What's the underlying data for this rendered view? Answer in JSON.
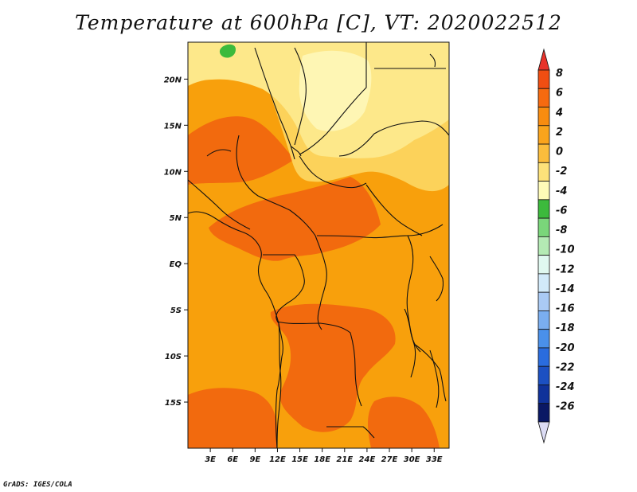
{
  "title": "Temperature at 600hPa [C], VT: 2020022512",
  "credit": "GrADS: IGES/COLA",
  "map": {
    "lon_range": [
      0,
      35
    ],
    "lat_range": [
      -20,
      24
    ],
    "lat_labels": [
      {
        "lat": 20,
        "text": "20N"
      },
      {
        "lat": 15,
        "text": "15N"
      },
      {
        "lat": 10,
        "text": "10N"
      },
      {
        "lat": 5,
        "text": "5N"
      },
      {
        "lat": 0,
        "text": "EQ"
      },
      {
        "lat": -5,
        "text": "5S"
      },
      {
        "lat": -10,
        "text": "10S"
      },
      {
        "lat": -15,
        "text": "15S"
      }
    ],
    "lon_labels": [
      {
        "lon": 3,
        "text": "3E"
      },
      {
        "lon": 6,
        "text": "6E"
      },
      {
        "lon": 9,
        "text": "9E"
      },
      {
        "lon": 12,
        "text": "12E"
      },
      {
        "lon": 15,
        "text": "15E"
      },
      {
        "lon": 18,
        "text": "18E"
      },
      {
        "lon": 21,
        "text": "21E"
      },
      {
        "lon": 24,
        "text": "24E"
      },
      {
        "lon": 27,
        "text": "27E"
      },
      {
        "lon": 30,
        "text": "30E"
      },
      {
        "lon": 33,
        "text": "33E"
      }
    ]
  },
  "colorbar": {
    "labels": [
      "8",
      "6",
      "4",
      "2",
      "0",
      "-2",
      "-4",
      "-6",
      "-8",
      "-10",
      "-12",
      "-14",
      "-16",
      "-18",
      "-20",
      "-22",
      "-24",
      "-26"
    ],
    "colors": [
      "#e8322a",
      "#f04e12",
      "#f66a10",
      "#f88c10",
      "#faa41c",
      "#fbbd3c",
      "#fde27a",
      "#fefbb8",
      "#3cba3c",
      "#7ad67a",
      "#b4eab4",
      "#e0f8f0",
      "#d2eafa",
      "#aacaf4",
      "#7aaef0",
      "#4a90ea",
      "#2a6cde",
      "#1c50c2",
      "#10329a",
      "#0a1864",
      "#dcdcf4"
    ]
  },
  "field_colors": {
    "warm4": "#f26a0e",
    "warm2": "#f8a00c",
    "warm0": "#fbba30",
    "cool0": "#fcd25a",
    "coolm2": "#fde88a",
    "coolm4": "#fef6b4",
    "green": "#3cba3c",
    "border": "#111111"
  }
}
